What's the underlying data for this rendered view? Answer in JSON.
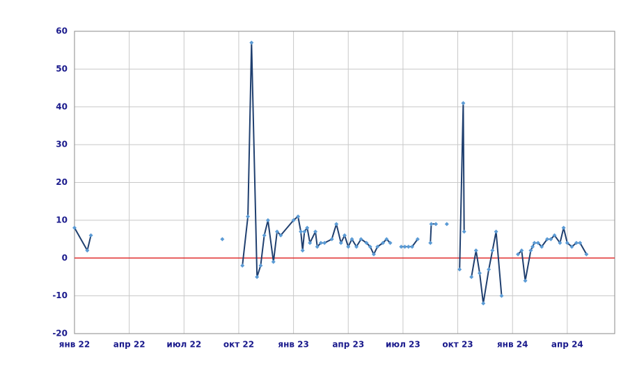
{
  "chart_data": {
    "type": "line",
    "x": [
      0,
      0.7,
      0.9,
      null,
      8.1,
      null,
      9.2,
      9.5,
      9.7,
      10.0,
      10.2,
      10.4,
      10.6,
      10.9,
      11.1,
      11.3,
      12.0,
      12.25,
      12.4,
      12.5,
      12.6,
      12.75,
      12.9,
      13.2,
      13.3,
      13.5,
      13.7,
      14.1,
      14.35,
      14.6,
      14.8,
      15.0,
      15.2,
      15.45,
      15.7,
      16.0,
      16.2,
      16.4,
      16.6,
      16.9,
      17.1,
      17.3,
      null,
      17.9,
      18.1,
      18.3,
      18.5,
      18.8,
      null,
      19.5,
      19.55,
      19.8,
      null,
      20.4,
      null,
      21.1,
      21.3,
      21.35,
      null,
      21.75,
      22.0,
      22.2,
      22.4,
      22.7,
      22.9,
      23.1,
      23.4,
      null,
      24.3,
      24.5,
      24.7,
      25.0,
      25.1,
      25.2,
      25.4,
      25.6,
      25.9,
      26.1,
      26.3,
      26.6,
      26.8,
      27.0,
      27.25,
      27.5,
      27.7,
      28.05
    ],
    "series": [
      {
        "color": "#1f3f6f",
        "marker_color": "#5b9bd5",
        "values": [
          8,
          2,
          6,
          null,
          5,
          null,
          -2,
          11,
          57,
          -5,
          -2,
          6,
          10,
          -1,
          7,
          6,
          10,
          11,
          7,
          2,
          7,
          8,
          4,
          7,
          3,
          4,
          4,
          5,
          9,
          4,
          6,
          3,
          5,
          3,
          5,
          4,
          3,
          1,
          3,
          4,
          5,
          4,
          null,
          3,
          3,
          3,
          3,
          5,
          null,
          4,
          9,
          9,
          null,
          9,
          null,
          -3,
          41,
          7,
          null,
          -5,
          2,
          -4,
          -12,
          -3,
          2,
          7,
          -10,
          null,
          1,
          2,
          -6,
          2,
          3,
          4,
          4,
          3,
          5,
          5,
          6,
          4,
          8,
          4,
          3,
          4,
          4,
          1
        ]
      }
    ],
    "xlim": [
      0,
      29.6
    ],
    "xticks": [
      {
        "value": 0,
        "label": "янв 22"
      },
      {
        "value": 3,
        "label": "апр 22"
      },
      {
        "value": 6,
        "label": "июл 22"
      },
      {
        "value": 9,
        "label": "окт 22"
      },
      {
        "value": 12,
        "label": "янв 23"
      },
      {
        "value": 15,
        "label": "апр 23"
      },
      {
        "value": 18,
        "label": "июл 23"
      },
      {
        "value": 21,
        "label": "окт 23"
      },
      {
        "value": 24,
        "label": "янв 24"
      },
      {
        "value": 27,
        "label": "апр 24"
      }
    ],
    "ylim": [
      -20,
      60
    ],
    "yticks": [
      -20,
      -10,
      0,
      10,
      20,
      30,
      40,
      50,
      60
    ],
    "grid": true,
    "zero_line_color": "#e03030"
  }
}
